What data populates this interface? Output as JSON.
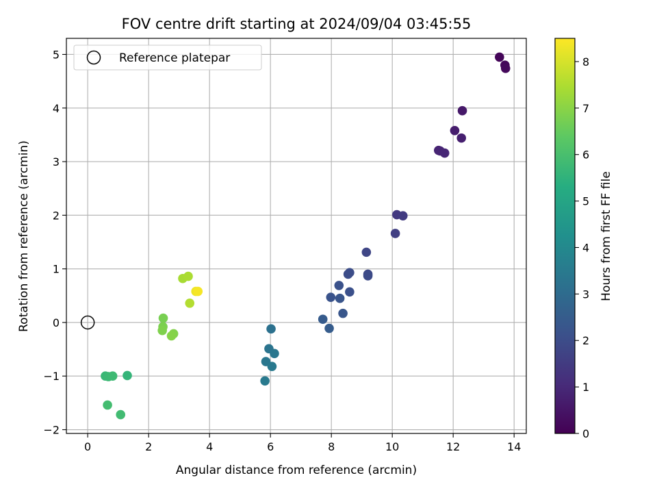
{
  "chart_data": {
    "type": "scatter",
    "title": "FOV centre drift starting at 2024/09/04 03:45:55",
    "xlabel": "Angular distance from reference (arcmin)",
    "ylabel": "Rotation from reference (arcmin)",
    "xlim": [
      -0.7,
      14.4
    ],
    "ylim": [
      -2.07,
      5.3
    ],
    "xticks": [
      0,
      2,
      4,
      6,
      8,
      10,
      12,
      14
    ],
    "yticks": [
      -2,
      -1,
      0,
      1,
      2,
      3,
      4,
      5
    ],
    "xtick_labels": [
      "0",
      "2",
      "4",
      "6",
      "8",
      "10",
      "12",
      "14"
    ],
    "ytick_labels": [
      "−2",
      "−1",
      "0",
      "1",
      "2",
      "3",
      "4",
      "5"
    ],
    "grid": true,
    "legend": {
      "position": "upper-left",
      "entries": [
        {
          "label": "Reference platepar",
          "marker": "open-circle",
          "color": "#000000"
        }
      ]
    },
    "reference_point": {
      "x": 0,
      "y": 0
    },
    "colorbar": {
      "label": "Hours from first FF file",
      "colormap": "viridis",
      "range": [
        0,
        8.5
      ],
      "ticks": [
        0,
        1,
        2,
        3,
        4,
        5,
        6,
        7,
        8
      ],
      "tick_labels": [
        "0",
        "1",
        "2",
        "3",
        "4",
        "5",
        "6",
        "7",
        "8"
      ]
    },
    "series": [
      {
        "points": [
          {
            "x": 13.52,
            "y": 4.95,
            "c": 0.1
          },
          {
            "x": 13.7,
            "y": 4.8,
            "c": 0.15
          },
          {
            "x": 13.72,
            "y": 4.74,
            "c": 0.2
          },
          {
            "x": 12.3,
            "y": 3.95,
            "c": 0.6
          },
          {
            "x": 12.05,
            "y": 3.58,
            "c": 0.7
          },
          {
            "x": 12.27,
            "y": 3.44,
            "c": 0.75
          },
          {
            "x": 11.52,
            "y": 3.21,
            "c": 0.85
          },
          {
            "x": 11.57,
            "y": 3.2,
            "c": 0.9
          },
          {
            "x": 11.72,
            "y": 3.16,
            "c": 0.95
          },
          {
            "x": 10.15,
            "y": 2.01,
            "c": 1.45
          },
          {
            "x": 10.35,
            "y": 1.99,
            "c": 1.5
          },
          {
            "x": 10.1,
            "y": 1.66,
            "c": 1.6
          },
          {
            "x": 9.15,
            "y": 1.31,
            "c": 1.8
          },
          {
            "x": 9.2,
            "y": 0.9,
            "c": 1.9
          },
          {
            "x": 9.2,
            "y": 0.87,
            "c": 1.95
          },
          {
            "x": 8.55,
            "y": 0.9,
            "c": 2.0
          },
          {
            "x": 8.6,
            "y": 0.93,
            "c": 2.02
          },
          {
            "x": 8.6,
            "y": 0.57,
            "c": 2.1
          },
          {
            "x": 8.25,
            "y": 0.69,
            "c": 2.15
          },
          {
            "x": 7.98,
            "y": 0.47,
            "c": 2.2
          },
          {
            "x": 8.28,
            "y": 0.45,
            "c": 2.25
          },
          {
            "x": 8.38,
            "y": 0.17,
            "c": 2.3
          },
          {
            "x": 7.72,
            "y": 0.06,
            "c": 2.45
          },
          {
            "x": 7.93,
            "y": -0.11,
            "c": 2.5
          },
          {
            "x": 6.02,
            "y": -0.12,
            "c": 3.2
          },
          {
            "x": 5.95,
            "y": -0.49,
            "c": 3.3
          },
          {
            "x": 6.13,
            "y": -0.58,
            "c": 3.35
          },
          {
            "x": 5.85,
            "y": -0.73,
            "c": 3.4
          },
          {
            "x": 6.05,
            "y": -0.82,
            "c": 3.45
          },
          {
            "x": 5.82,
            "y": -1.09,
            "c": 3.5
          },
          {
            "x": 0.58,
            "y": -1.0,
            "c": 5.7
          },
          {
            "x": 0.68,
            "y": -1.01,
            "c": 5.75
          },
          {
            "x": 0.82,
            "y": -1.0,
            "c": 5.8
          },
          {
            "x": 1.3,
            "y": -0.99,
            "c": 5.6
          },
          {
            "x": 0.65,
            "y": -1.54,
            "c": 5.9
          },
          {
            "x": 1.08,
            "y": -1.72,
            "c": 5.85
          },
          {
            "x": 2.48,
            "y": 0.08,
            "c": 6.75
          },
          {
            "x": 2.47,
            "y": -0.08,
            "c": 6.8
          },
          {
            "x": 2.45,
            "y": -0.15,
            "c": 6.85
          },
          {
            "x": 2.82,
            "y": -0.21,
            "c": 6.9
          },
          {
            "x": 2.75,
            "y": -0.25,
            "c": 6.95
          },
          {
            "x": 3.12,
            "y": 0.82,
            "c": 7.4
          },
          {
            "x": 3.3,
            "y": 0.86,
            "c": 7.45
          },
          {
            "x": 3.35,
            "y": 0.36,
            "c": 7.55
          },
          {
            "x": 3.55,
            "y": 0.58,
            "c": 8.3
          },
          {
            "x": 3.62,
            "y": 0.58,
            "c": 8.4
          }
        ]
      }
    ]
  }
}
